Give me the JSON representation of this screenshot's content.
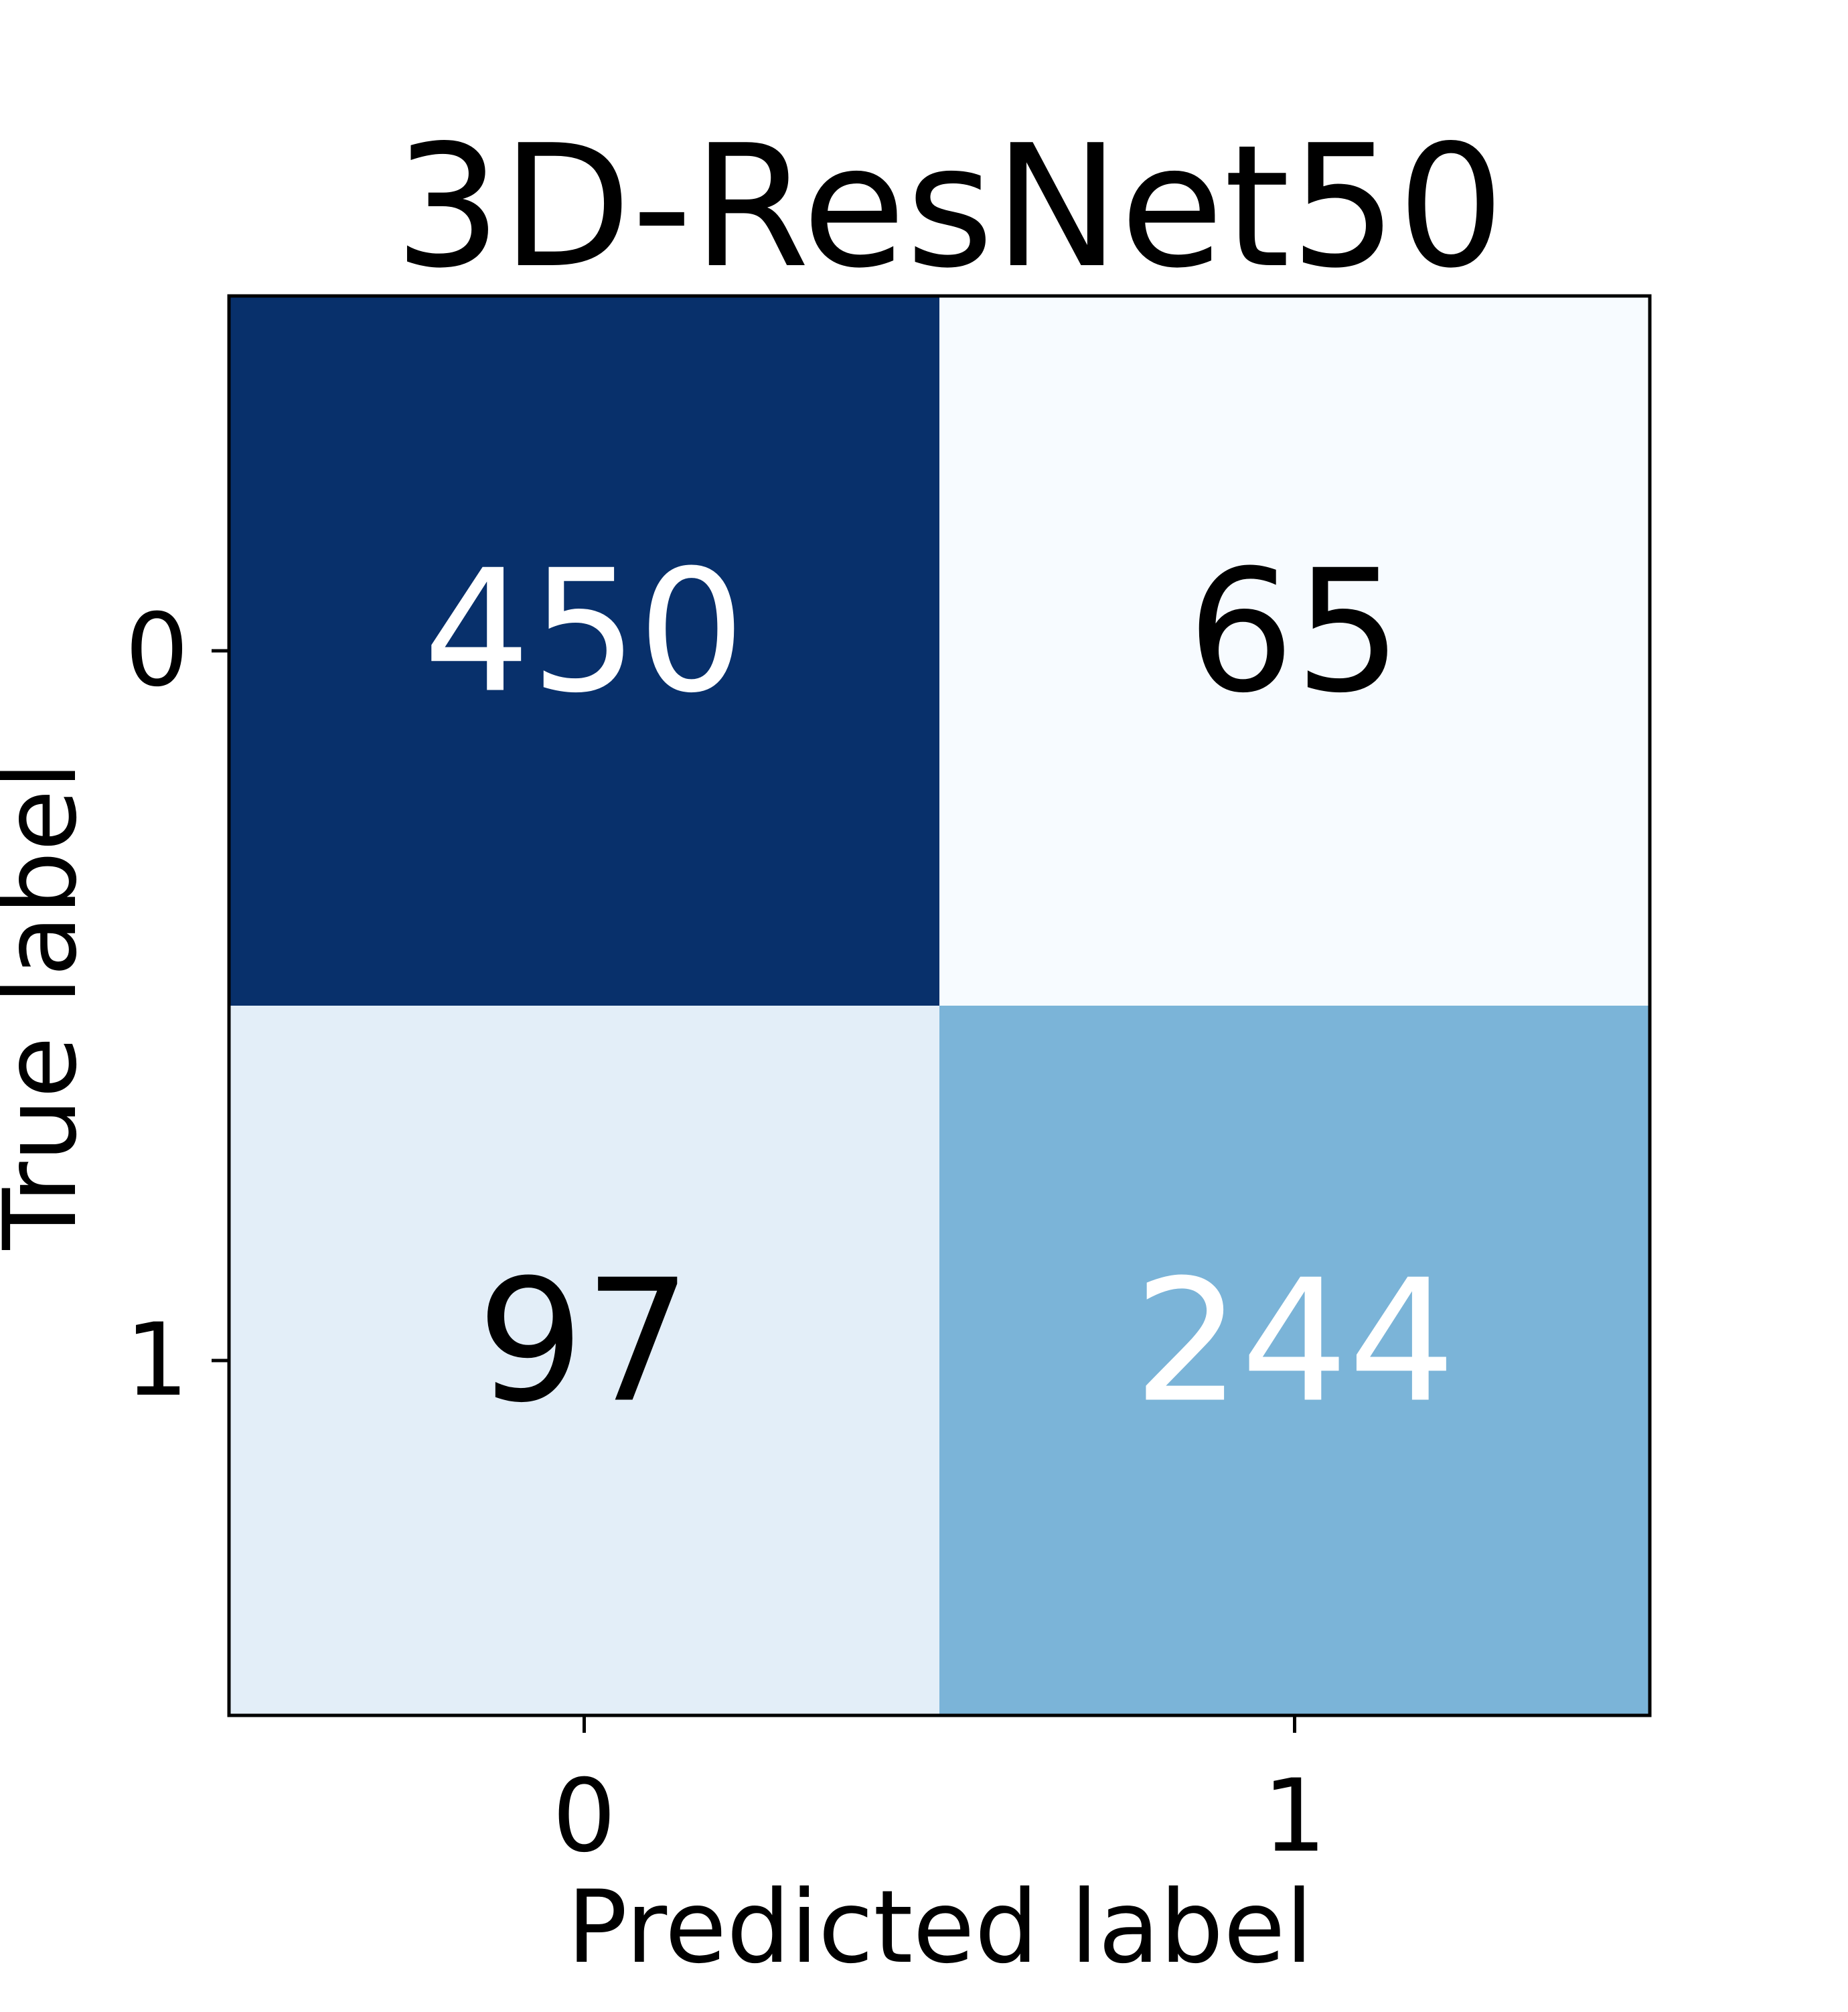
{
  "chart_data": {
    "type": "heatmap",
    "title": "3D-ResNet50",
    "xlabel": "Predicted label",
    "ylabel": "True label",
    "x_categories": [
      "0",
      "1"
    ],
    "y_categories": [
      "0",
      "1"
    ],
    "values": [
      [
        450,
        65
      ],
      [
        97,
        244
      ]
    ],
    "colormap": "Blues",
    "cell_colors": [
      [
        "#08306b",
        "#f7fbff"
      ],
      [
        "#e3eef8",
        "#7bb4d8"
      ]
    ],
    "text_colors": [
      [
        "#ffffff",
        "#000000"
      ],
      [
        "#000000",
        "#ffffff"
      ]
    ],
    "grid": false
  }
}
